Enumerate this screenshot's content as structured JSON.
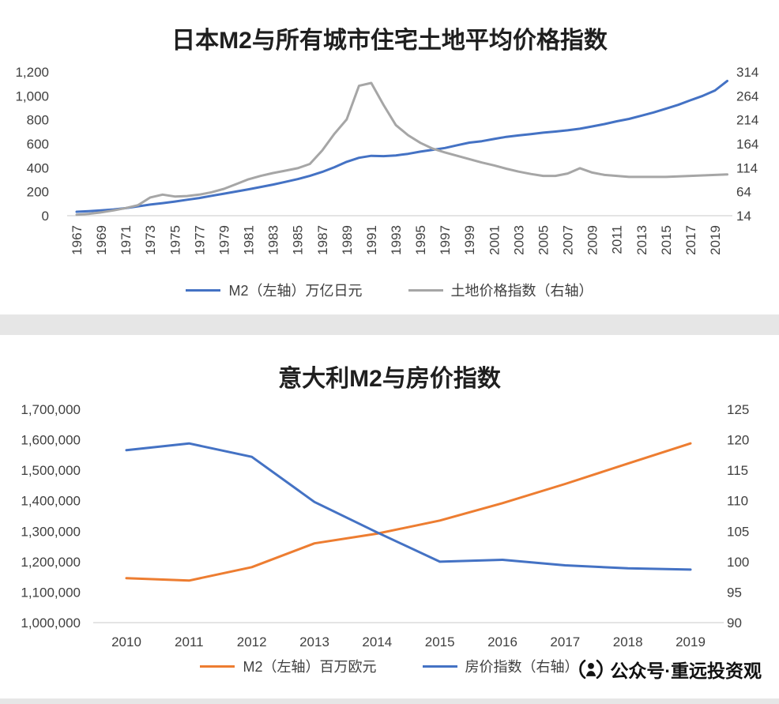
{
  "watermark": {
    "text": "公众号·重远投资观",
    "icon": "wechat-official-account-icon"
  },
  "chart_data": [
    {
      "type": "line",
      "title": "日本M2与所有城市住宅土地平均价格指数",
      "grid": false,
      "legend_position": "bottom",
      "x_domain": [
        1967,
        2019
      ],
      "x_tick_labels": [
        "1967",
        "1969",
        "1971",
        "1973",
        "1975",
        "1977",
        "1979",
        "1981",
        "1983",
        "1985",
        "1987",
        "1989",
        "1991",
        "1993",
        "1995",
        "1997",
        "1999",
        "2001",
        "2003",
        "2005",
        "2007",
        "2009",
        "2011",
        "2013",
        "2015",
        "2017",
        "2019"
      ],
      "left_axis": {
        "min": 0,
        "max": 1200,
        "tick_labels": [
          "0",
          "200",
          "400",
          "600",
          "800",
          "1,000",
          "1,200"
        ]
      },
      "right_axis": {
        "min": 14,
        "max": 314,
        "tick_labels": [
          "14",
          "64",
          "114",
          "164",
          "214",
          "264",
          "314"
        ]
      },
      "series": [
        {
          "name": "M2（左轴）万亿日元",
          "axis": "left",
          "color": "#4472C4",
          "x": [
            1967,
            1968,
            1969,
            1970,
            1971,
            1972,
            1973,
            1974,
            1975,
            1976,
            1977,
            1978,
            1979,
            1980,
            1981,
            1982,
            1983,
            1984,
            1985,
            1986,
            1987,
            1988,
            1989,
            1990,
            1991,
            1992,
            1993,
            1994,
            1995,
            1996,
            1997,
            1998,
            1999,
            2000,
            2001,
            2002,
            2003,
            2004,
            2005,
            2006,
            2007,
            2008,
            2009,
            2010,
            2011,
            2012,
            2013,
            2014,
            2015,
            2016,
            2017,
            2018,
            2019,
            2020
          ],
          "values": [
            33,
            38,
            44,
            52,
            63,
            78,
            93,
            105,
            118,
            133,
            148,
            166,
            184,
            202,
            220,
            240,
            260,
            282,
            305,
            332,
            365,
            405,
            450,
            483,
            500,
            497,
            503,
            516,
            535,
            550,
            565,
            588,
            610,
            622,
            640,
            658,
            670,
            681,
            693,
            702,
            713,
            726,
            745,
            765,
            788,
            808,
            835,
            862,
            893,
            925,
            963,
            1000,
            1045,
            1125
          ]
        },
        {
          "name": "土地价格指数（右轴）",
          "axis": "right",
          "color": "#A6A6A6",
          "x": [
            1967,
            1968,
            1969,
            1970,
            1971,
            1972,
            1973,
            1974,
            1975,
            1976,
            1977,
            1978,
            1979,
            1980,
            1981,
            1982,
            1983,
            1984,
            1985,
            1986,
            1987,
            1988,
            1989,
            1990,
            1991,
            1992,
            1993,
            1994,
            1995,
            1996,
            1997,
            1998,
            1999,
            2000,
            2001,
            2002,
            2003,
            2004,
            2005,
            2006,
            2007,
            2008,
            2009,
            2010,
            2011,
            2012,
            2013,
            2014,
            2015,
            2016,
            2017,
            2018,
            2019,
            2020
          ],
          "values": [
            16,
            18,
            21,
            25,
            30,
            36,
            52,
            58,
            54,
            55,
            58,
            63,
            70,
            80,
            90,
            97,
            103,
            108,
            113,
            122,
            150,
            185,
            215,
            285,
            291,
            245,
            203,
            182,
            166,
            154,
            146,
            139,
            132,
            125,
            119,
            112,
            106,
            101,
            97,
            97,
            102,
            113,
            104,
            99,
            97,
            95,
            95,
            95,
            95,
            96,
            97,
            98,
            99,
            100
          ]
        }
      ]
    },
    {
      "type": "line",
      "title": "意大利M2与房价指数",
      "grid": false,
      "legend_position": "bottom",
      "x_domain": [
        2010,
        2019
      ],
      "x_tick_labels": [
        "2010",
        "2011",
        "2012",
        "2013",
        "2014",
        "2015",
        "2016",
        "2017",
        "2018",
        "2019"
      ],
      "left_axis": {
        "min": 1000000,
        "max": 1700000,
        "tick_labels": [
          "1,000,000",
          "1,100,000",
          "1,200,000",
          "1,300,000",
          "1,400,000",
          "1,500,000",
          "1,600,000",
          "1,700,000"
        ]
      },
      "right_axis": {
        "min": 90,
        "max": 125,
        "tick_labels": [
          "90",
          "95",
          "100",
          "105",
          "110",
          "115",
          "120",
          "125"
        ]
      },
      "series": [
        {
          "name": "M2（左轴）百万欧元",
          "axis": "left",
          "color": "#ED7D31",
          "x": [
            2010,
            2011,
            2012,
            2013,
            2014,
            2015,
            2016,
            2017,
            2018,
            2019
          ],
          "values": [
            1146000,
            1138000,
            1182000,
            1260000,
            1292000,
            1335000,
            1392000,
            1455000,
            1522000,
            1588000
          ]
        },
        {
          "name": "房价指数（右轴）",
          "axis": "right",
          "color": "#4472C4",
          "x": [
            2010,
            2011,
            2012,
            2013,
            2014,
            2015,
            2016,
            2017,
            2018,
            2019
          ],
          "values": [
            118.3,
            119.4,
            117.2,
            109.8,
            104.8,
            100,
            100.3,
            99.4,
            98.9,
            98.7
          ]
        }
      ]
    }
  ]
}
